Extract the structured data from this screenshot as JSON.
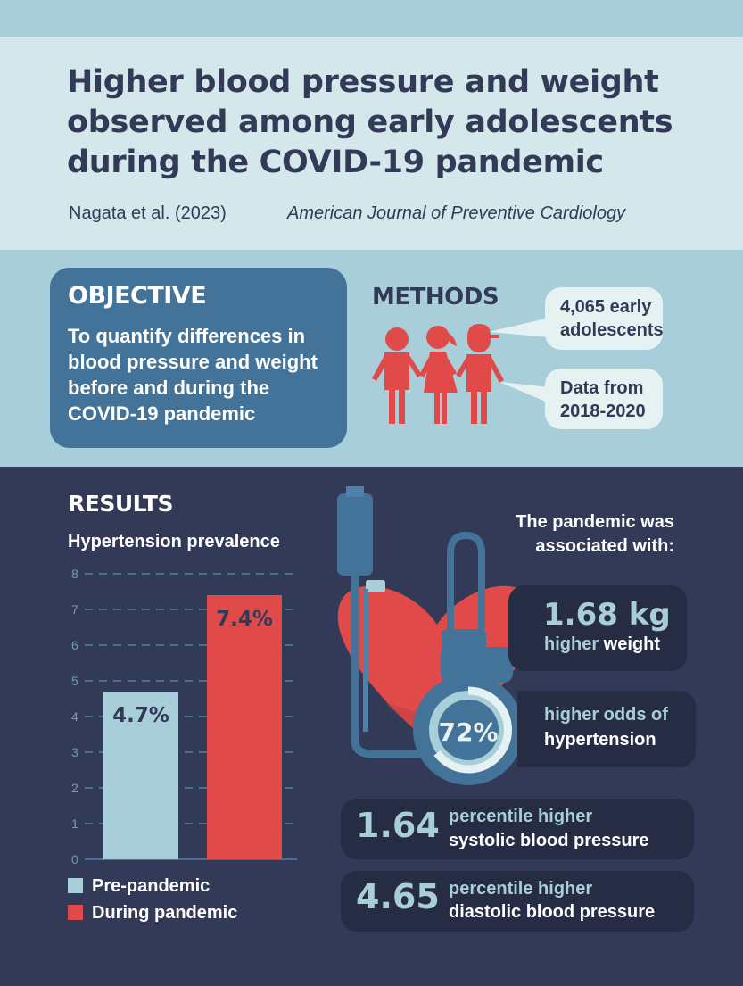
{
  "header": {
    "title": "Higher blood pressure and weight observed among early adolescents during the COVID-19 pandemic",
    "authors": "Nagata et al. (2023)",
    "journal": "American Journal of Preventive Cardiology"
  },
  "objective": {
    "title": "OBJECTIVE",
    "text": "To quantify differences in blood pressure and weight before and during the COVID-19 pandemic"
  },
  "methods": {
    "title": "METHODS",
    "sample": "4,065 early adolescents",
    "data_years": "Data from 2018-2020",
    "icon": "children-group-icon"
  },
  "results": {
    "title": "RESULTS",
    "associated_intro": "The pandemic was associated with:",
    "weight": {
      "value": "1.68 kg",
      "prefix": "higher ",
      "bold": "weight"
    },
    "hypertension": {
      "value": "72%",
      "prefix": "higher odds of",
      "bold": "hypertension"
    },
    "systolic": {
      "value": "1.64",
      "prefix": "percentile higher",
      "bold": "systolic blood pressure"
    },
    "diastolic": {
      "value": "4.65",
      "prefix": "percentile higher",
      "bold": "diastolic blood pressure"
    },
    "icon": "blood-pressure-monitor-heart-icon"
  },
  "colors": {
    "navy": "#323a57",
    "steel_blue": "#437399",
    "light_blue": "#a8cfd9",
    "red": "#e04b4a"
  },
  "chart_data": {
    "type": "bar",
    "title": "Hypertension prevalence",
    "categories": [
      "Pre-pandemic",
      "During pandemic"
    ],
    "values": [
      4.7,
      7.4
    ],
    "data_labels": [
      "4.7%",
      "7.4%"
    ],
    "colors": [
      "#a8cfd9",
      "#e04b4a"
    ],
    "ylim": [
      0,
      8
    ],
    "yticks": [
      0,
      1,
      2,
      3,
      4,
      5,
      6,
      7,
      8
    ],
    "grid": true,
    "legend": "bottom-left",
    "xlabel": "",
    "ylabel": ""
  }
}
